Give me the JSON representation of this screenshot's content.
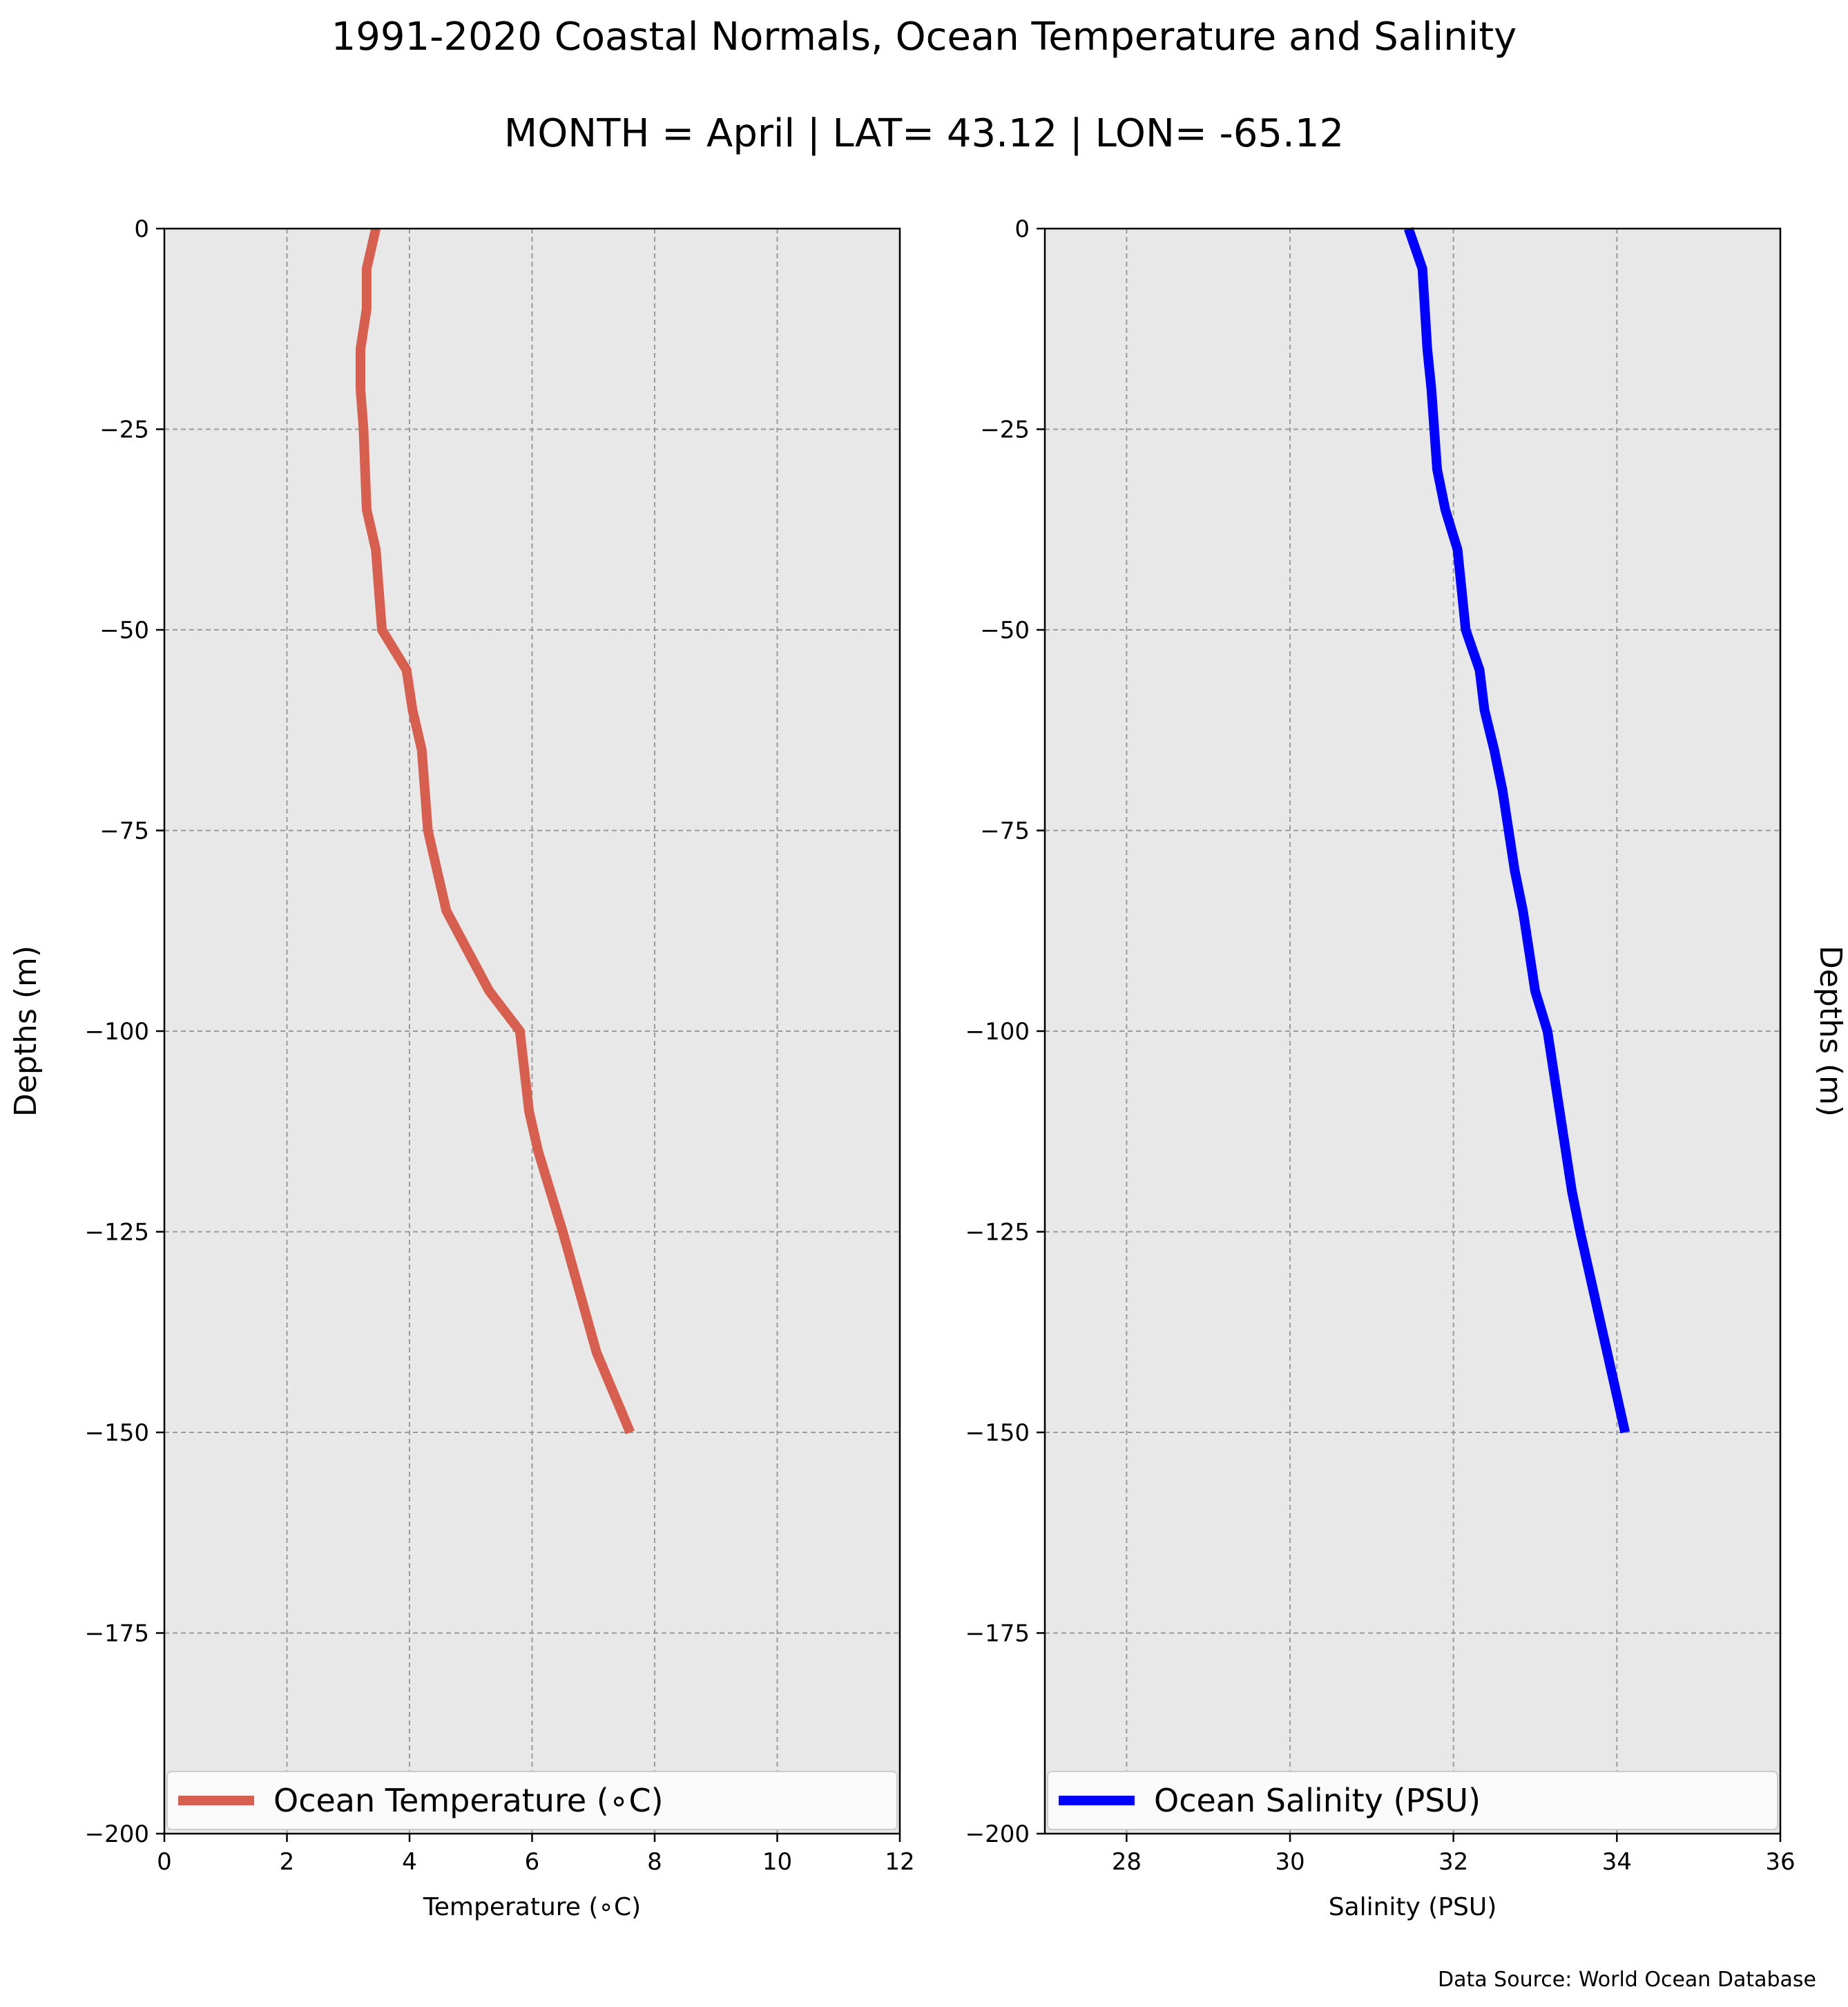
{
  "figure": {
    "title": "1991-2020 Coastal Normals, Ocean Temperature and Salinity",
    "subtitle": "MONTH = April | LAT= 43.12 | LON= -65.12",
    "source": "Data Source: World Ocean Database"
  },
  "chart_data": [
    {
      "type": "line",
      "ylabel": "Depths (m)",
      "xlabel": "Temperature (∘C)",
      "xlim": [
        0,
        12
      ],
      "ylim": [
        -200,
        0
      ],
      "xticks": [
        0,
        2,
        4,
        6,
        8,
        10,
        12
      ],
      "xtick_labels": [
        "0",
        "2",
        "4",
        "6",
        "8",
        "10",
        "12"
      ],
      "yticks": [
        0,
        -25,
        -50,
        -75,
        -100,
        -125,
        -150,
        -175,
        -200
      ],
      "ytick_labels": [
        "0",
        "−25",
        "−50",
        "−75",
        "−100",
        "−125",
        "−150",
        "−175",
        "−200"
      ],
      "grid": true,
      "legend_position": "bottom",
      "series": [
        {
          "name": "Ocean Temperature (∘C)",
          "color": "#d65f4f",
          "x": [
            3.45,
            3.3,
            3.3,
            3.2,
            3.2,
            3.25,
            3.3,
            3.45,
            3.5,
            3.55,
            3.95,
            4.05,
            4.2,
            4.25,
            4.3,
            4.6,
            4.95,
            5.3,
            5.8,
            5.95,
            6.1,
            6.3,
            6.5,
            7.05,
            7.6
          ],
          "y": [
            0,
            -5,
            -10,
            -15,
            -20,
            -25,
            -35,
            -40,
            -45,
            -50,
            -55,
            -60,
            -65,
            -70,
            -75,
            -85,
            -90,
            -95,
            -100,
            -110,
            -115,
            -120,
            -125,
            -140,
            -150
          ]
        }
      ]
    },
    {
      "type": "line",
      "ylabel": "Depths (m)",
      "xlabel": "Salinity (PSU)",
      "xlim": [
        27,
        36
      ],
      "ylim": [
        -200,
        0
      ],
      "xticks": [
        28,
        30,
        32,
        34,
        36
      ],
      "xtick_labels": [
        "28",
        "30",
        "32",
        "34",
        "36"
      ],
      "yticks": [
        0,
        -25,
        -50,
        -75,
        -100,
        -125,
        -150,
        -175,
        -200
      ],
      "ytick_labels": [
        "0",
        "−25",
        "−50",
        "−75",
        "−100",
        "−125",
        "−150",
        "−175",
        "−200"
      ],
      "grid": true,
      "legend_position": "bottom",
      "series": [
        {
          "name": "Ocean Salinity (PSU)",
          "color": "#0000ff",
          "x": [
            31.45,
            31.62,
            31.68,
            31.73,
            31.8,
            31.9,
            32.05,
            32.15,
            32.32,
            32.38,
            32.5,
            32.6,
            32.75,
            32.85,
            33.0,
            33.15,
            33.3,
            33.45,
            33.55,
            34.1
          ],
          "y": [
            0,
            -5,
            -15,
            -20,
            -30,
            -35,
            -40,
            -50,
            -55,
            -60,
            -65,
            -70,
            -80,
            -85,
            -95,
            -100,
            -110,
            -120,
            -125,
            -150
          ]
        }
      ]
    }
  ]
}
